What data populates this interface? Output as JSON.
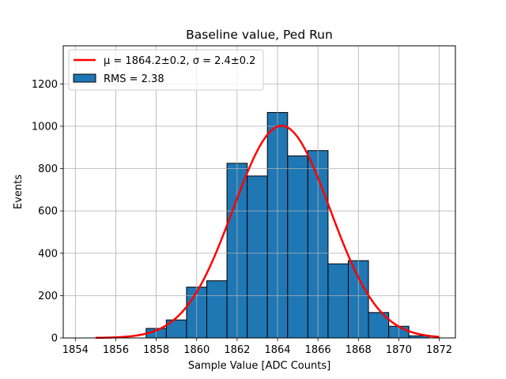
{
  "chart_data": {
    "type": "bar",
    "title": "Baseline value, Ped Run",
    "xlabel": "Sample Value [ADC Counts]",
    "ylabel": "Events",
    "xlim": [
      1853.4,
      1872.8
    ],
    "ylim": [
      0,
      1380
    ],
    "grid": true,
    "legend_position": "top-left",
    "xticks": [
      1854,
      1856,
      1858,
      1860,
      1862,
      1864,
      1866,
      1868,
      1870,
      1872
    ],
    "yticks": [
      0,
      200,
      400,
      600,
      800,
      1000,
      1200
    ],
    "histogram": {
      "name": "RMS = 2.38",
      "color": "#1f77b4",
      "edge_color": "#000000",
      "bin_edges": [
        1857.5,
        1858.5,
        1859.5,
        1860.5,
        1861.5,
        1862.5,
        1863.5,
        1864.5,
        1865.5,
        1866.5,
        1867.5,
        1868.5,
        1869.5,
        1870.5,
        1871.5
      ],
      "counts": [
        45,
        85,
        240,
        270,
        825,
        765,
        1065,
        860,
        885,
        350,
        365,
        120,
        55,
        10
      ]
    },
    "fit": {
      "name_math": "μ = 1864.2±0.2, σ = 2.4±0.2",
      "color": "#ff0000",
      "type": "gaussian",
      "mu": 1864.2,
      "sigma": 2.4,
      "amplitude": 1002,
      "x_range": [
        1855,
        1872
      ]
    }
  }
}
